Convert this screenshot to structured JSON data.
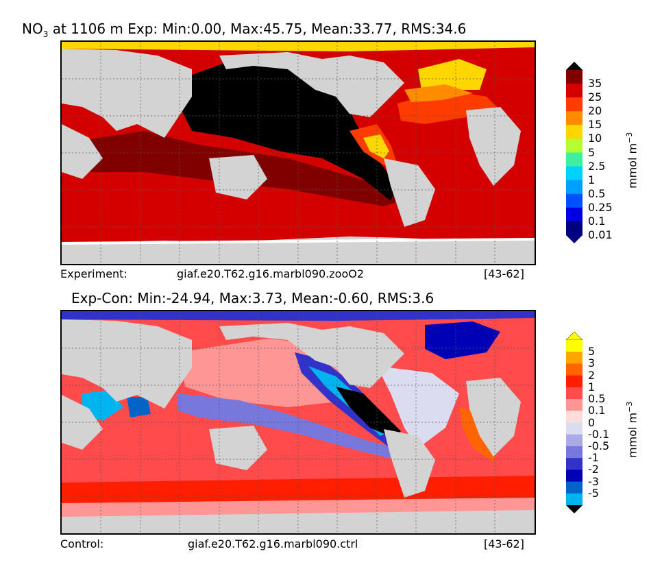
{
  "panel_top": {
    "title_prefix": "NO",
    "title_sub": "3",
    "title_rest": " at 1106 m Exp: Min:0.00, Max:45.75, Mean:33.77, RMS:34.6",
    "footer_label": "Experiment:",
    "footer_case": "giaf.e20.T62.g16.marbl090.zooO2",
    "footer_years": "[43-62]",
    "colorbar_units": "mmol m",
    "colorbar_units_exp": "−3",
    "colorbar_ticks": [
      "35",
      "25",
      "20",
      "15",
      "10",
      "5",
      "2.5",
      "1",
      "0.5",
      "0.25",
      "0.1",
      "0.01"
    ],
    "colorbar_colors": [
      "#800000",
      "#d40000",
      "#ff3c00",
      "#ff8c00",
      "#ffd700",
      "#b4ff32",
      "#3cf0a0",
      "#00d2ff",
      "#00a0ff",
      "#0050ff",
      "#0000e0",
      "#000080"
    ]
  },
  "panel_bottom": {
    "title": "Exp-Con: Min:-24.94, Max:3.73, Mean:-0.60, RMS:3.6",
    "footer_label": "Control:",
    "footer_case": "giaf.e20.T62.g16.marbl090.ctrl",
    "footer_years": "[43-62]",
    "colorbar_units": "mmol m",
    "colorbar_units_exp": "−3",
    "colorbar_ticks": [
      "5",
      "3",
      "2",
      "1",
      "0.5",
      "0.1",
      "0",
      "-0.1",
      "-0.5",
      "-1",
      "-2",
      "-3",
      "-5"
    ],
    "colorbar_colors": [
      "#ffff00",
      "#ffa500",
      "#ff6400",
      "#ff1e00",
      "#ff4b4b",
      "#ff9696",
      "#ffdcdc",
      "#dcdcf0",
      "#aaaae6",
      "#7878dc",
      "#3232c8",
      "#0000b4",
      "#0064c8",
      "#00b4f0"
    ]
  }
}
